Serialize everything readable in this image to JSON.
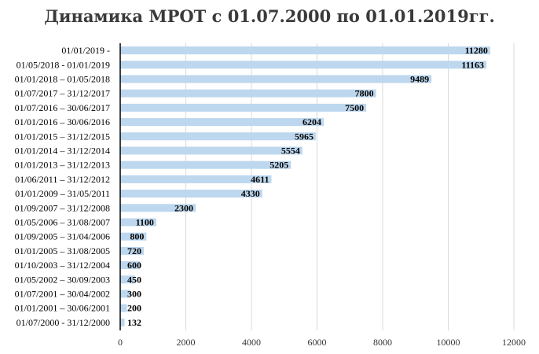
{
  "chart_data": {
    "type": "bar",
    "orientation": "horizontal",
    "title": "Динамика МРОТ с 01.07.2000 по 01.01.2019гг.",
    "categories": [
      "01/01/2019 -",
      "01/05/2018 - 01/01/2019",
      "01/01/2018 – 01/05/2018",
      "01/07/2017 – 31/12/2017",
      "01/07/2016 – 30/06/2017",
      "01/01/2016 – 30/06/2016",
      "01/01/2015 – 31/12/2015",
      "01/01/2014 – 31/12/2014",
      "01/01/2013 – 31/12/2013",
      "01/06/2011 – 31/12/2012",
      "01/01/2009 – 31/05/2011",
      "01/09/2007 – 31/12/2008",
      "01/05/2006 – 31/08/2007",
      "01/09/2005 – 31/04/2006",
      "01/01/2005 – 31/08/2005",
      "01/10/2003 – 31/12/2004",
      "01/05/2002 – 30/09/2003",
      "01/07/2001 – 30/04/2002",
      "01/01/2001 – 30/06/2001",
      "01/07/2000 - 31/12/2000"
    ],
    "values": [
      11280,
      11163,
      9489,
      7800,
      7500,
      6204,
      5965,
      5554,
      5205,
      4611,
      4330,
      2300,
      1100,
      800,
      720,
      600,
      450,
      300,
      200,
      132
    ],
    "xlim": [
      0,
      12000
    ],
    "xticks": [
      "0",
      "2000",
      "4000",
      "6000",
      "8000",
      "10000",
      "12000"
    ],
    "xlabel": "",
    "ylabel": "",
    "grid": "vertical",
    "bar_color": "#bdd7ee",
    "grid_color": "#d9d9d9",
    "axis_color": "#000000"
  }
}
